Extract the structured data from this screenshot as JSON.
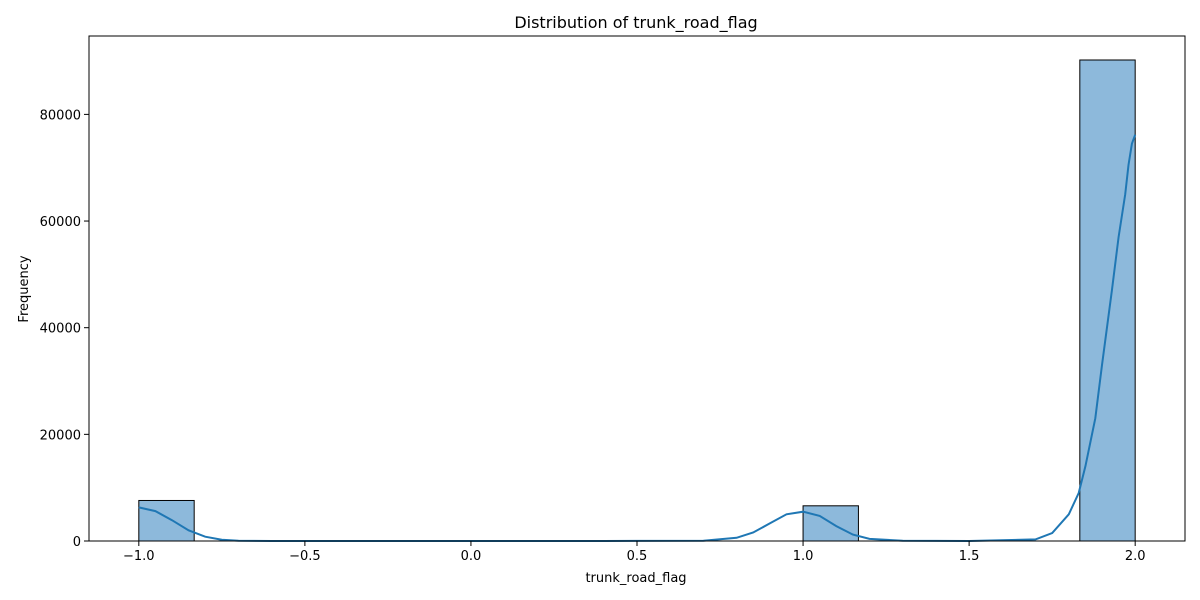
{
  "chart_data": {
    "type": "bar",
    "title": "Distribution of trunk_road_flag",
    "xlabel": "trunk_road_flag",
    "ylabel": "Frequency",
    "xlim": [
      -1.15,
      2.15
    ],
    "ylim": [
      0,
      94700
    ],
    "xticks": [
      -1.0,
      -0.5,
      0.0,
      0.5,
      1.0,
      1.5,
      2.0
    ],
    "xtick_labels": [
      "−1.0",
      "−0.5",
      "0.0",
      "0.5",
      "1.0",
      "1.5",
      "2.0"
    ],
    "yticks": [
      0,
      20000,
      40000,
      60000,
      80000
    ],
    "ytick_labels": [
      "0",
      "20000",
      "40000",
      "60000",
      "80000"
    ],
    "grid": false,
    "bin_edges": [
      -1.0,
      -0.8333,
      -0.6667,
      -0.5,
      -0.3333,
      -0.1667,
      0.0,
      0.1667,
      0.3333,
      0.5,
      0.6667,
      0.8333,
      1.0,
      1.1667,
      1.3333,
      1.5,
      1.6667,
      1.8333,
      2.0
    ],
    "values": [
      7600,
      0,
      0,
      0,
      0,
      0,
      0,
      0,
      0,
      0,
      0,
      0,
      6600,
      0,
      0,
      0,
      0,
      90200
    ],
    "kde": {
      "x": [
        -1.0,
        -0.95,
        -0.9,
        -0.85,
        -0.8,
        -0.75,
        -0.7,
        -0.6,
        -0.4,
        0.0,
        0.4,
        0.7,
        0.8,
        0.85,
        0.9,
        0.95,
        1.0,
        1.05,
        1.1,
        1.15,
        1.2,
        1.3,
        1.5,
        1.7,
        1.75,
        1.8,
        1.83,
        1.85,
        1.88,
        1.9,
        1.93,
        1.95,
        1.97,
        1.98,
        1.99,
        2.0
      ],
      "y": [
        6300,
        5600,
        3900,
        2000,
        800,
        250,
        60,
        0,
        0,
        0,
        0,
        50,
        600,
        1600,
        3300,
        5000,
        5500,
        4700,
        2800,
        1200,
        400,
        50,
        0,
        300,
        1500,
        5000,
        9000,
        14000,
        23000,
        33000,
        47000,
        57000,
        65000,
        70500,
        74500,
        76200
      ]
    },
    "bar_color": "#8db9db",
    "bar_edge_color": "#000000",
    "kde_color": "#1f77b4"
  }
}
